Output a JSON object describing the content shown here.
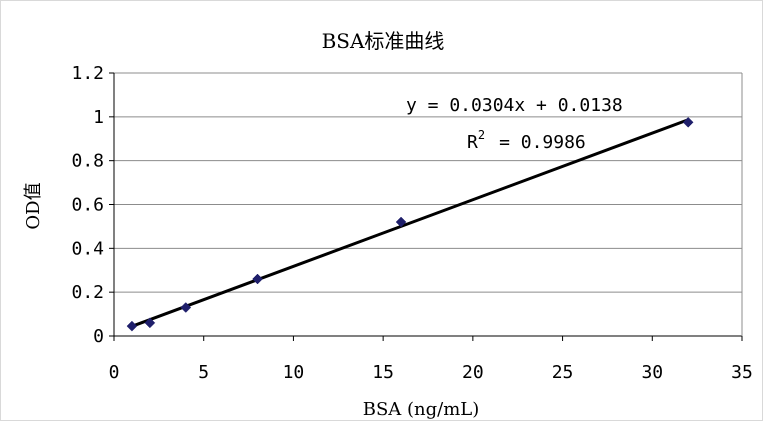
{
  "chart_data": {
    "type": "scatter",
    "title": "BSA标准曲线",
    "xlabel": "BSA (ng/mL)",
    "ylabel": "OD值",
    "xlim": [
      0,
      35
    ],
    "ylim": [
      0,
      1.2
    ],
    "x_ticks": [
      "0",
      "5",
      "10",
      "15",
      "20",
      "25",
      "30",
      "35"
    ],
    "y_ticks": [
      "0",
      "0.2",
      "0.4",
      "0.6",
      "0.8",
      "1",
      "1.2"
    ],
    "grid": "horizontal",
    "series": [
      {
        "x": [
          1,
          2,
          4,
          8,
          16,
          32
        ],
        "y": [
          0.045,
          0.06,
          0.13,
          0.26,
          0.52,
          0.975
        ],
        "marker": "diamond",
        "color": "#1f1f6b"
      }
    ],
    "trendline": {
      "slope": 0.0304,
      "intercept": 0.0138,
      "x_range": [
        1,
        32
      ],
      "color": "#000000",
      "equation": "y = 0.0304x + 0.0138",
      "r2_prefix": "R",
      "r2_sup": "2",
      "r2_value": "= 0.9986"
    }
  }
}
